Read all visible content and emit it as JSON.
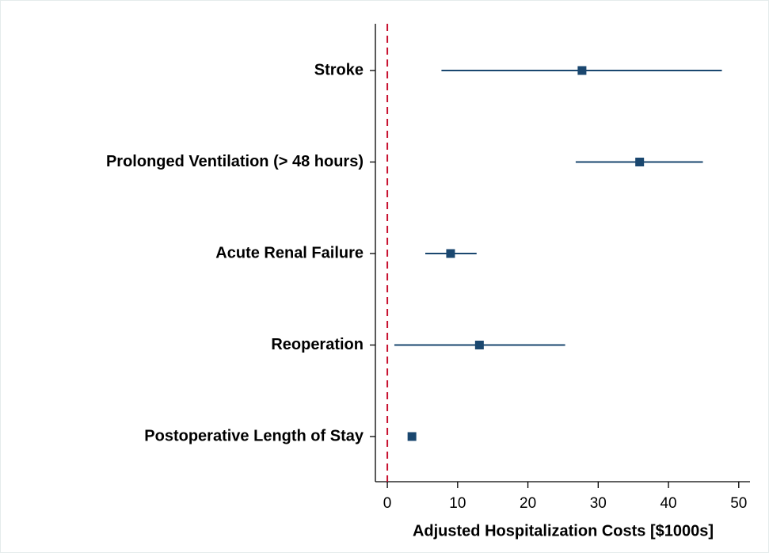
{
  "chart_data": {
    "type": "forest",
    "xlabel": "Adjusted Hospitalization Costs [$1000s]",
    "categories": [
      "Stroke",
      "Prolonged Ventilation (> 48 hours)",
      "Acute Renal Failure",
      "Reoperation",
      "Postoperative Length of Stay"
    ],
    "values": [
      27.7,
      35.9,
      9.0,
      13.1,
      3.5
    ],
    "lower": [
      7.7,
      26.8,
      5.4,
      1.0,
      3.2
    ],
    "upper": [
      47.6,
      44.9,
      12.7,
      25.3,
      3.8
    ],
    "color": "#1a476f",
    "reference_line": 0,
    "reference_color": "#c8102e",
    "xlim": [
      -1.7,
      51.6
    ],
    "xticks": [
      0,
      10,
      20,
      30,
      40,
      50
    ]
  }
}
